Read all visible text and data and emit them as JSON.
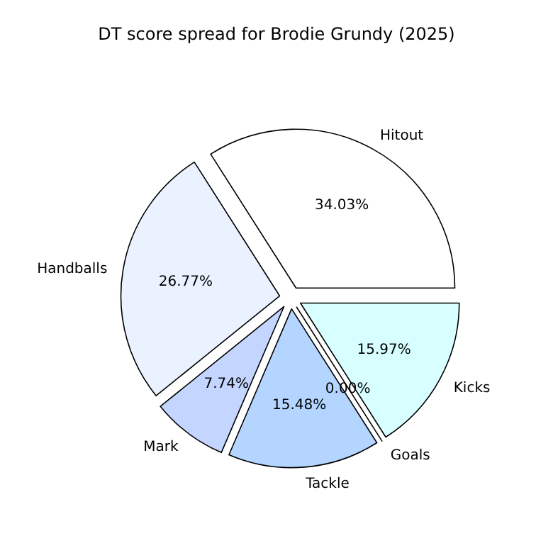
{
  "chart_data": {
    "type": "pie",
    "title": "DT score spread for Brodie Grundy (2025)",
    "categories": [
      "Hitout",
      "Handballs",
      "Mark",
      "Tackle",
      "Goals",
      "Kicks"
    ],
    "values": [
      34.03,
      26.77,
      7.74,
      15.48,
      0.0,
      15.97
    ],
    "colors": [
      "#ffffff",
      "#eaf1ff",
      "#c4d6ff",
      "#b3d5ff",
      "#9ec4ff",
      "#d8ffff"
    ],
    "value_labels": [
      "34.03%",
      "26.77%",
      "7.74%",
      "15.48%",
      "0.00%",
      "15.97%"
    ]
  }
}
